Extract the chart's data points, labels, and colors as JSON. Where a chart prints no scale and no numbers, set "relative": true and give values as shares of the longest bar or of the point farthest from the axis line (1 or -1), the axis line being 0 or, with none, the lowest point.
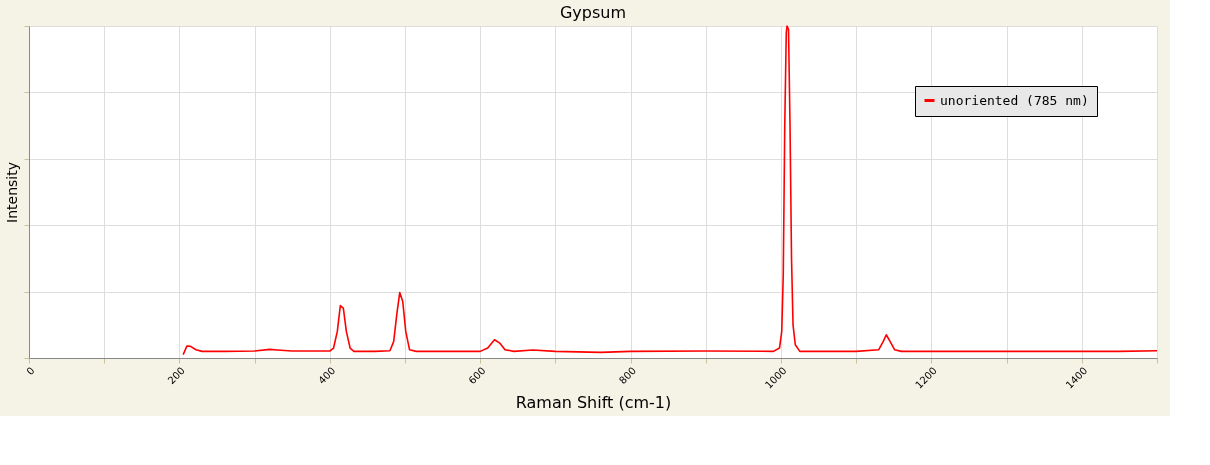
{
  "chart_data": {
    "type": "line",
    "title": "Gypsum",
    "xlabel": "Raman Shift (cm-1)",
    "ylabel": "Intensity",
    "relative": true,
    "xlim": [
      0,
      1500
    ],
    "xticks": [
      0,
      {
        "value": 100,
        "label": null
      },
      200,
      {
        "value": 300,
        "label": null
      },
      400,
      {
        "value": 500,
        "label": null
      },
      600,
      {
        "value": 700,
        "label": null
      },
      800,
      {
        "value": 900,
        "label": null
      },
      1000,
      {
        "value": 1100,
        "label": null
      },
      1200,
      {
        "value": 1300,
        "label": null
      },
      1400,
      {
        "value": 1500,
        "label": null
      }
    ],
    "grid": true,
    "legend": "top right",
    "marker": "none",
    "line_style": "solid",
    "series": [
      {
        "name": "unoriented (785 nm)",
        "color": "#ff0000",
        "x": [
          205,
          210,
          215,
          222,
          230,
          260,
          300,
          320,
          330,
          350,
          400,
          405,
          410,
          414,
          418,
          422,
          427,
          432,
          460,
          480,
          485,
          489,
          493,
          497,
          501,
          506,
          515,
          600,
          610,
          619,
          626,
          633,
          645,
          670,
          700,
          760,
          800,
          900,
          990,
          998,
          1001,
          1003,
          1005,
          1007,
          1008,
          1010,
          1012,
          1014,
          1016,
          1019,
          1025,
          1100,
          1130,
          1136,
          1140,
          1145,
          1151,
          1160,
          1300,
          1400,
          1450,
          1500
        ],
        "values": [
          0.01,
          0.036,
          0.035,
          0.025,
          0.02,
          0.02,
          0.021,
          0.026,
          0.024,
          0.021,
          0.021,
          0.03,
          0.08,
          0.158,
          0.15,
          0.08,
          0.03,
          0.02,
          0.02,
          0.022,
          0.05,
          0.13,
          0.197,
          0.17,
          0.08,
          0.025,
          0.02,
          0.02,
          0.03,
          0.055,
          0.045,
          0.025,
          0.02,
          0.024,
          0.02,
          0.017,
          0.02,
          0.021,
          0.02,
          0.03,
          0.08,
          0.25,
          0.7,
          0.98,
          1.0,
          0.99,
          0.7,
          0.3,
          0.1,
          0.04,
          0.02,
          0.02,
          0.025,
          0.05,
          0.07,
          0.05,
          0.025,
          0.02,
          0.02,
          0.02,
          0.02,
          0.022
        ]
      }
    ]
  }
}
